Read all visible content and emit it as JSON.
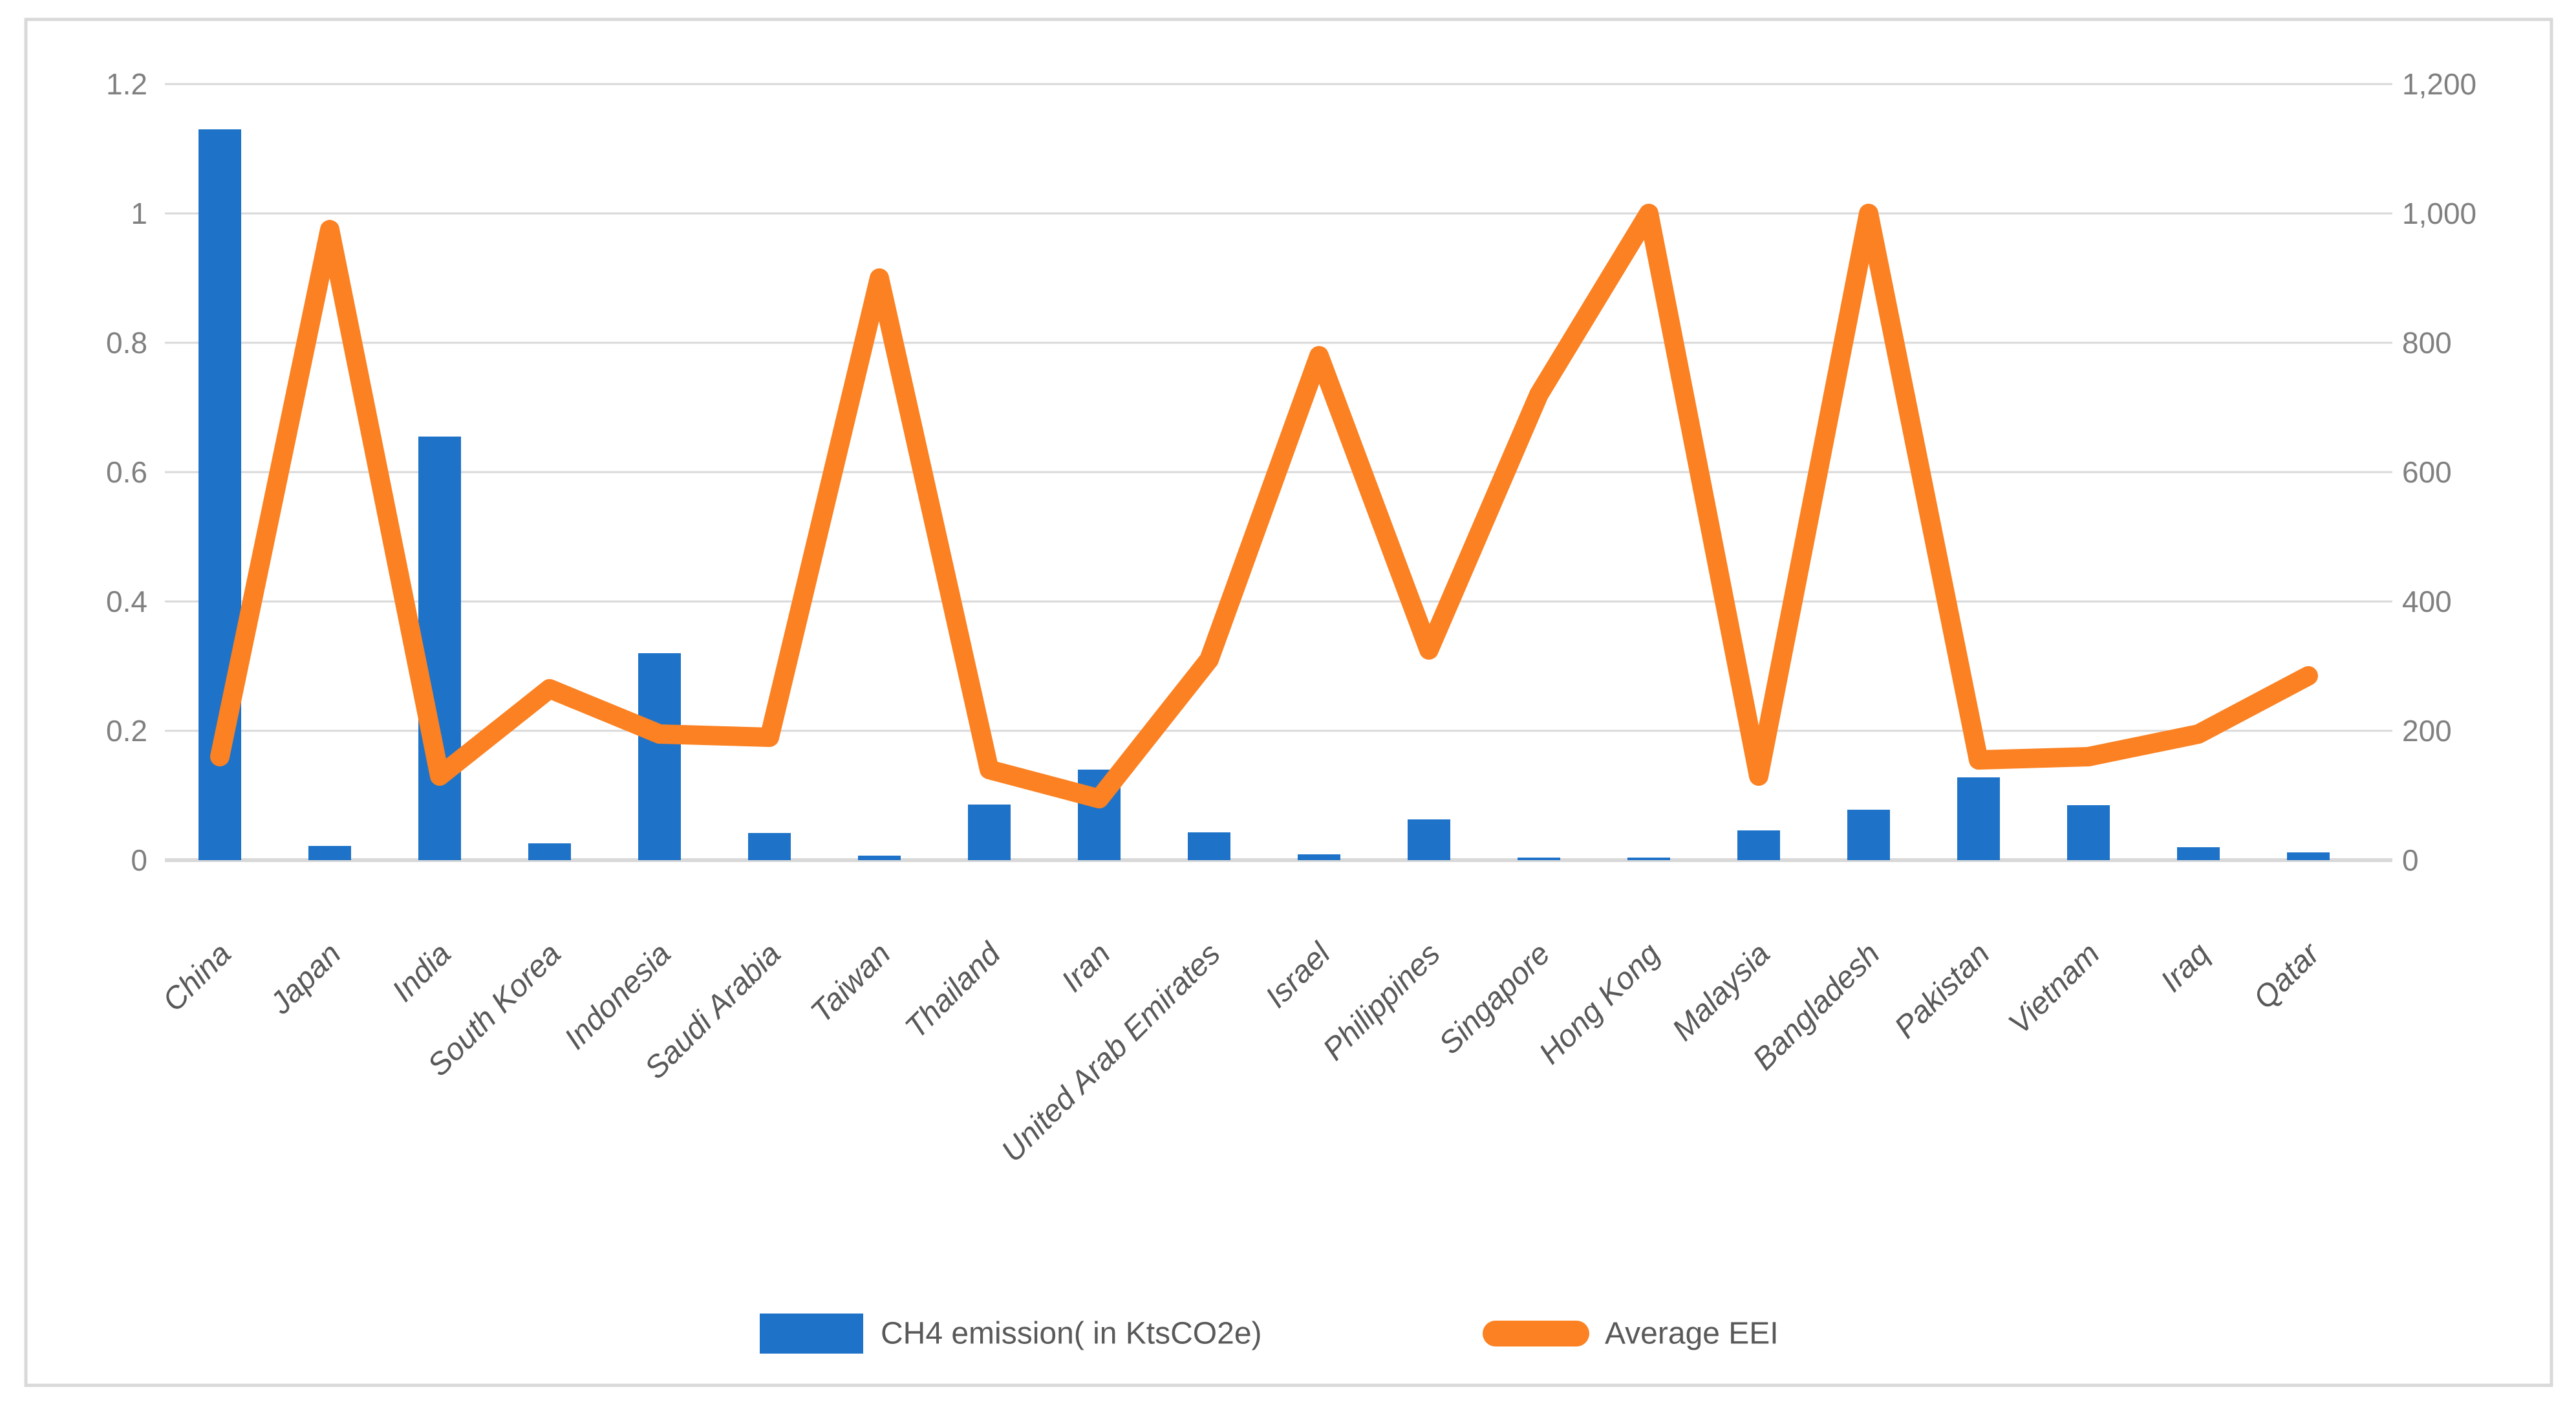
{
  "chart_data": {
    "type": "combo",
    "title": "",
    "categories": [
      "China",
      "Japan",
      "India",
      "South Korea",
      "Indonesia",
      "Saudi Arabia",
      "Taiwan",
      "Thailand",
      "Iran",
      "United Arab Emirates",
      "Israel",
      "Philippines",
      "Singapore",
      "Hong Kong",
      "Malaysia",
      "Bangladesh",
      "Pakistan",
      "Vietnam",
      "Iraq",
      "Qatar"
    ],
    "series": [
      {
        "name": "CH4 emission( in KtsCO2e)",
        "type": "bar",
        "axis": "left",
        "color": "#1E73C8",
        "values": [
          1.13,
          0.022,
          0.655,
          0.026,
          0.32,
          0.042,
          0.007,
          0.086,
          0.14,
          0.043,
          0.009,
          0.063,
          0.004,
          0.004,
          0.046,
          0.078,
          0.128,
          0.085,
          0.02,
          0.012
        ]
      },
      {
        "name": "Average EEI",
        "type": "line",
        "axis": "right",
        "color": "#FB8122",
        "values": [
          160,
          975,
          130,
          265,
          195,
          190,
          900,
          140,
          95,
          310,
          780,
          325,
          720,
          1000,
          130,
          1000,
          155,
          160,
          195,
          285
        ]
      }
    ],
    "left_axis": {
      "min": 0,
      "max": 1.2,
      "tick_labels": [
        "0",
        "0.2",
        "0.4",
        "0.6",
        "0.8",
        "1",
        "1.2"
      ]
    },
    "right_axis": {
      "min": 0,
      "max": 1200,
      "tick_labels": [
        "0",
        "200",
        "400",
        "600",
        "800",
        "1,000",
        "1,200"
      ]
    },
    "grid": true,
    "legend_position": "bottom",
    "styles": {
      "gridline_color": "#D9D9D9",
      "border_color": "#D9D9D9",
      "axis_text_color": "#808080",
      "category_text_color": "#595959",
      "legend_text_color": "#595959",
      "background": "#FFFFFF"
    }
  }
}
